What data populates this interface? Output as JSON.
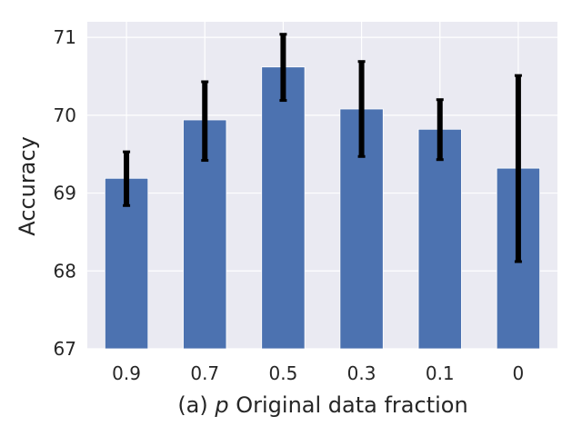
{
  "chart_data": {
    "type": "bar",
    "categories": [
      "0.9",
      "0.7",
      "0.5",
      "0.3",
      "0.1",
      "0"
    ],
    "values": [
      69.19,
      69.94,
      70.62,
      70.08,
      69.82,
      69.32
    ],
    "errors": [
      [
        68.84,
        69.53
      ],
      [
        69.42,
        70.43
      ],
      [
        70.19,
        71.04
      ],
      [
        69.47,
        70.69
      ],
      [
        69.43,
        70.2
      ],
      [
        68.12,
        70.51
      ]
    ],
    "xlabel_prefix": "(a) ",
    "xlabel_var": "p",
    "xlabel_rest": " Original data fraction",
    "ylabel": "Accuracy",
    "ylim": [
      67,
      71.2
    ],
    "yticks": [
      "67",
      "68",
      "69",
      "70",
      "71"
    ],
    "grid": true,
    "colors": {
      "bar": "#4c72b0",
      "background": "#eaeaf2",
      "grid": "#ffffff",
      "error": "#000000",
      "text": "#262626"
    }
  }
}
